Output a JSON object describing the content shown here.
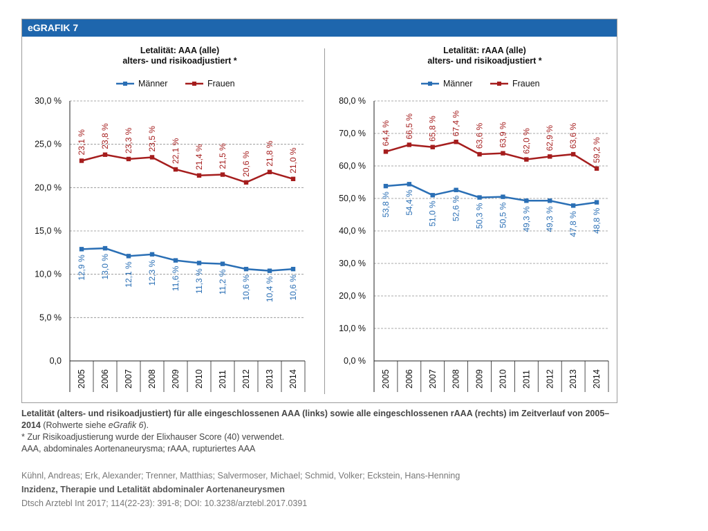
{
  "header": {
    "title": "eGRAFIK 7"
  },
  "legend": {
    "men": "Männer",
    "women": "Frauen"
  },
  "colors": {
    "men": "#2a6fb5",
    "women": "#a51d1d",
    "header": "#1e66ad",
    "grid": "#8c8c8c"
  },
  "chart_data": [
    {
      "type": "line",
      "title": "Letalität: AAA (alle)",
      "subtitle": "alters- und risikoadjustiert *",
      "x": [
        "2005",
        "2006",
        "2007",
        "2008",
        "2009",
        "2010",
        "2011",
        "2012",
        "2013",
        "2014"
      ],
      "ylim": [
        0,
        30
      ],
      "yticks": [
        0,
        5,
        10,
        15,
        20,
        25,
        30
      ],
      "ytick_labels": [
        "0,0",
        "5,0 %",
        "10,0 %",
        "15,0 %",
        "20,0 %",
        "25,0 %",
        "30,0 %"
      ],
      "series": [
        {
          "name": "Männer",
          "values": [
            12.9,
            13.0,
            12.1,
            12.3,
            11.6,
            11.3,
            11.2,
            10.6,
            10.4,
            10.6
          ],
          "labels": [
            "12,9 %",
            "13,0 %",
            "12,1 %",
            "12,3 %",
            "11,6 %",
            "11,3 %",
            "11,2 %",
            "10,6 %",
            "10,4 %",
            "10,6 %"
          ]
        },
        {
          "name": "Frauen",
          "values": [
            23.1,
            23.8,
            23.3,
            23.5,
            22.1,
            21.4,
            21.5,
            20.6,
            21.8,
            21.0
          ],
          "labels": [
            "23,1 %",
            "23,8 %",
            "23,3 %",
            "23,5 %",
            "22,1 %",
            "21,4 %",
            "21,5 %",
            "20,6 %",
            "21,8 %",
            "21,0 %"
          ]
        }
      ]
    },
    {
      "type": "line",
      "title": "Letalität: rAAA (alle)",
      "subtitle": "alters- und risikoadjustiert *",
      "x": [
        "2005",
        "2006",
        "2007",
        "2008",
        "2009",
        "2010",
        "2011",
        "2012",
        "2013",
        "2014"
      ],
      "ylim": [
        0,
        80
      ],
      "yticks": [
        0,
        10,
        20,
        30,
        40,
        50,
        60,
        70,
        80
      ],
      "ytick_labels": [
        "0,0 %",
        "10,0 %",
        "20,0 %",
        "30,0 %",
        "40,0 %",
        "50,0 %",
        "60,0 %",
        "70,0 %",
        "80,0 %"
      ],
      "series": [
        {
          "name": "Männer",
          "values": [
            53.8,
            54.4,
            51.0,
            52.6,
            50.3,
            50.5,
            49.3,
            49.3,
            47.8,
            48.8
          ],
          "labels": [
            "53,8 %",
            "54,4 %",
            "51,0 %",
            "52,6 %",
            "50,3 %",
            "50,5 %",
            "49,3 %",
            "49,3 %",
            "47,8 %",
            "48,8 %"
          ]
        },
        {
          "name": "Frauen",
          "values": [
            64.4,
            66.5,
            65.8,
            67.4,
            63.6,
            63.9,
            62.0,
            62.9,
            63.6,
            59.2
          ],
          "labels": [
            "64,4 %",
            "66,5 %",
            "65,8 %",
            "67,4 %",
            "63,6 %",
            "63,9 %",
            "62,0 %",
            "62,9 %",
            "63,6 %",
            "59,2 %"
          ]
        }
      ]
    }
  ],
  "caption": {
    "bold_part": "Letalität (alters- und risikoadjustiert) für alle eingeschlossenen AAA (links) sowie alle eingeschlossenen rAAA (rechts) im Zeitverlauf von 2005–2014",
    "normal_a": " (Rohwerte siehe ",
    "italic": "eGrafik 6",
    "normal_b": ").",
    "line2": "* Zur Risikoadjustierung wurde der Elixhauser Score (40) verwendet.",
    "line3": "AAA, abdominales Aortenaneurysma; rAAA, rupturiertes AAA"
  },
  "citation": {
    "authors": "Kühnl, Andreas; Erk, Alexander; Trenner, Matthias; Salvermoser, Michael; Schmid, Volker; Eckstein, Hans-Henning",
    "title": "Inzidenz, Therapie und Letalität abdominaler Aortenaneurysmen",
    "journal": "Dtsch Arztebl Int 2017; 114(22-23): 391-8; DOI: 10.3238/arztebl.2017.0391"
  }
}
